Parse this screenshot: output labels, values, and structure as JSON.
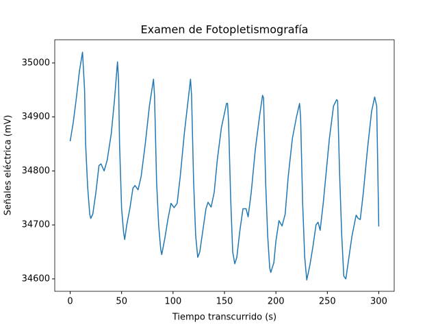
{
  "chart_data": {
    "type": "line",
    "title": "Examen de Fotopletismografía",
    "x_label": "Tiempo transcurrido (s)",
    "y_label": "Señales eléctrica (mV)",
    "color": "#1f77b4",
    "x": [
      0,
      3,
      6,
      9,
      12,
      14,
      15,
      17,
      19,
      20,
      22,
      25,
      28,
      30,
      33,
      36,
      40,
      43,
      46,
      47,
      48,
      50,
      52,
      53,
      55,
      58,
      61,
      63,
      66,
      69,
      73,
      77,
      81,
      82,
      84,
      86,
      88,
      89,
      92,
      95,
      98,
      101,
      104,
      107,
      111,
      114,
      117,
      118,
      120,
      122,
      124,
      126,
      129,
      132,
      134,
      137,
      140,
      143,
      147,
      152,
      153,
      154,
      156,
      158,
      160,
      162,
      165,
      168,
      171,
      173,
      176,
      180,
      184,
      187,
      188,
      190,
      192,
      194,
      195,
      198,
      200,
      203,
      206,
      209,
      212,
      216,
      220,
      223,
      224,
      226,
      228,
      230,
      233,
      236,
      239,
      241,
      243,
      246,
      249,
      252,
      256,
      259,
      260,
      262,
      264,
      266,
      268,
      271,
      274,
      278,
      280,
      282,
      285,
      289,
      293,
      296,
      298,
      300
    ],
    "values": [
      34855,
      34890,
      34935,
      34985,
      35020,
      34950,
      34850,
      34770,
      34720,
      34712,
      34720,
      34760,
      34810,
      34813,
      34800,
      34820,
      34870,
      34930,
      35002,
      34970,
      34850,
      34730,
      34685,
      34673,
      34700,
      34730,
      34768,
      34773,
      34765,
      34790,
      34850,
      34920,
      34970,
      34940,
      34780,
      34700,
      34655,
      34645,
      34675,
      34710,
      34740,
      34732,
      34740,
      34790,
      34870,
      34920,
      34970,
      34940,
      34780,
      34680,
      34640,
      34650,
      34690,
      34730,
      34742,
      34733,
      34760,
      34820,
      34880,
      34925,
      34925,
      34890,
      34750,
      34650,
      34628,
      34640,
      34690,
      34730,
      34730,
      34715,
      34760,
      34840,
      34900,
      34940,
      34935,
      34780,
      34680,
      34620,
      34612,
      34630,
      34670,
      34708,
      34698,
      34720,
      34790,
      34860,
      34900,
      34925,
      34900,
      34740,
      34640,
      34598,
      34625,
      34660,
      34700,
      34705,
      34690,
      34740,
      34800,
      34860,
      34920,
      34932,
      34930,
      34790,
      34680,
      34605,
      34600,
      34640,
      34680,
      34718,
      34712,
      34710,
      34760,
      34840,
      34910,
      34937,
      34920,
      34697
    ],
    "xlim": [
      -15,
      315
    ],
    "ylim": [
      34577,
      35043
    ],
    "xticks": [
      0,
      50,
      100,
      150,
      200,
      250,
      300
    ],
    "yticks": [
      34600,
      34700,
      34800,
      34900,
      35000
    ],
    "grid": false
  }
}
